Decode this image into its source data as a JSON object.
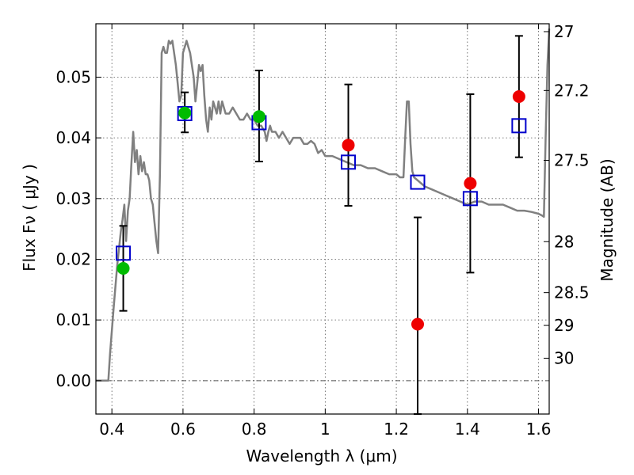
{
  "chart_data": {
    "type": "scatter",
    "xlabel": "Wavelength  λ (μm)",
    "ylabel": "Flux  Fν  ( μJy )",
    "y2label": "Magnitude (AB)",
    "xlim": [
      0.355,
      1.63
    ],
    "ylim": [
      -0.0055,
      0.0588
    ],
    "grid": true,
    "x_ticks": [
      0.4,
      0.6,
      0.8,
      1.0,
      1.2,
      1.4,
      1.6
    ],
    "x_tick_labels": [
      "0.4",
      "0.6",
      "0.8",
      "1",
      "1.2",
      "1.4",
      "1.6"
    ],
    "y_ticks": [
      0.0,
      0.01,
      0.02,
      0.03,
      0.04,
      0.05
    ],
    "y_tick_labels": [
      "0.00",
      "0.01",
      "0.02",
      "0.03",
      "0.04",
      "0.05"
    ],
    "y2_ticks": [
      {
        "label": "27",
        "flux": 0.0575
      },
      {
        "label": "27.2",
        "flux": 0.0478
      },
      {
        "label": "27.5",
        "flux": 0.0363
      },
      {
        "label": "28",
        "flux": 0.0229
      },
      {
        "label": "28.5",
        "flux": 0.0145
      },
      {
        "label": "29",
        "flux": 0.0091
      },
      {
        "label": "30",
        "flux": 0.0037
      }
    ],
    "colors": {
      "model": "#808080",
      "square": "#0000cc",
      "green": "#00bb00",
      "red": "#ee0000",
      "errorbar": "#000000",
      "zero_line": "#555555"
    },
    "model_spectrum": {
      "x": [
        0.355,
        0.39,
        0.395,
        0.405,
        0.415,
        0.425,
        0.43,
        0.435,
        0.44,
        0.445,
        0.45,
        0.455,
        0.46,
        0.465,
        0.47,
        0.475,
        0.48,
        0.485,
        0.49,
        0.495,
        0.5,
        0.505,
        0.51,
        0.515,
        0.52,
        0.525,
        0.53,
        0.535,
        0.54,
        0.545,
        0.55,
        0.555,
        0.56,
        0.565,
        0.57,
        0.575,
        0.58,
        0.585,
        0.59,
        0.595,
        0.6,
        0.605,
        0.61,
        0.615,
        0.62,
        0.625,
        0.63,
        0.635,
        0.64,
        0.645,
        0.65,
        0.655,
        0.66,
        0.665,
        0.67,
        0.675,
        0.68,
        0.685,
        0.69,
        0.695,
        0.7,
        0.705,
        0.71,
        0.715,
        0.72,
        0.73,
        0.74,
        0.75,
        0.76,
        0.77,
        0.78,
        0.79,
        0.8,
        0.81,
        0.82,
        0.83,
        0.835,
        0.84,
        0.845,
        0.85,
        0.86,
        0.87,
        0.88,
        0.89,
        0.9,
        0.91,
        0.92,
        0.93,
        0.94,
        0.95,
        0.96,
        0.97,
        0.98,
        0.99,
        1.0,
        1.02,
        1.04,
        1.06,
        1.08,
        1.1,
        1.12,
        1.14,
        1.16,
        1.18,
        1.2,
        1.21,
        1.22,
        1.225,
        1.23,
        1.235,
        1.24,
        1.245,
        1.25,
        1.26,
        1.28,
        1.3,
        1.32,
        1.34,
        1.36,
        1.38,
        1.4,
        1.42,
        1.44,
        1.46,
        1.48,
        1.5,
        1.52,
        1.54,
        1.56,
        1.58,
        1.6,
        1.61,
        1.615,
        1.62,
        1.625,
        1.63
      ],
      "y": [
        0.0,
        0.0,
        0.0045,
        0.012,
        0.019,
        0.0245,
        0.0265,
        0.029,
        0.023,
        0.028,
        0.03,
        0.036,
        0.041,
        0.036,
        0.038,
        0.034,
        0.037,
        0.0345,
        0.036,
        0.034,
        0.034,
        0.033,
        0.03,
        0.029,
        0.026,
        0.023,
        0.021,
        0.034,
        0.054,
        0.055,
        0.054,
        0.054,
        0.056,
        0.0555,
        0.056,
        0.054,
        0.052,
        0.049,
        0.046,
        0.047,
        0.054,
        0.055,
        0.056,
        0.055,
        0.054,
        0.052,
        0.05,
        0.046,
        0.049,
        0.052,
        0.051,
        0.052,
        0.047,
        0.043,
        0.041,
        0.045,
        0.043,
        0.046,
        0.045,
        0.044,
        0.046,
        0.044,
        0.046,
        0.045,
        0.044,
        0.044,
        0.045,
        0.044,
        0.043,
        0.043,
        0.044,
        0.043,
        0.043,
        0.042,
        0.042,
        0.041,
        0.0395,
        0.041,
        0.042,
        0.041,
        0.041,
        0.04,
        0.041,
        0.04,
        0.039,
        0.04,
        0.04,
        0.04,
        0.039,
        0.039,
        0.0395,
        0.039,
        0.0375,
        0.038,
        0.037,
        0.037,
        0.0365,
        0.036,
        0.0355,
        0.0355,
        0.035,
        0.035,
        0.0345,
        0.034,
        0.034,
        0.0335,
        0.0335,
        0.04,
        0.046,
        0.046,
        0.039,
        0.0345,
        0.0335,
        0.033,
        0.032,
        0.0315,
        0.031,
        0.0305,
        0.03,
        0.0295,
        0.029,
        0.0295,
        0.0295,
        0.029,
        0.029,
        0.029,
        0.0285,
        0.028,
        0.028,
        0.0278,
        0.0275,
        0.0272,
        0.027,
        0.04,
        0.052,
        0.058
      ]
    },
    "series": [
      {
        "marker": "square",
        "x": [
          0.432,
          0.605,
          0.814,
          1.065,
          1.26,
          1.408,
          1.545
        ],
        "y": [
          0.021,
          0.044,
          0.0425,
          0.036,
          0.0327,
          0.03,
          0.042
        ]
      },
      {
        "marker": "circle",
        "x": [
          0.432,
          0.605,
          0.814,
          1.065,
          1.26,
          1.408,
          1.545
        ],
        "y": [
          0.0185,
          0.0441,
          0.0435,
          0.0388,
          0.0093,
          0.0325,
          0.0468
        ],
        "yerr_low": [
          0.0115,
          0.0409,
          0.0361,
          0.0288,
          -0.0055,
          0.0178,
          0.0368
        ],
        "yerr_high": [
          0.0255,
          0.0475,
          0.0511,
          0.0488,
          0.0269,
          0.0472,
          0.0568
        ],
        "point_colors": [
          "green",
          "green",
          "green",
          "red",
          "red",
          "red",
          "red"
        ]
      }
    ]
  }
}
